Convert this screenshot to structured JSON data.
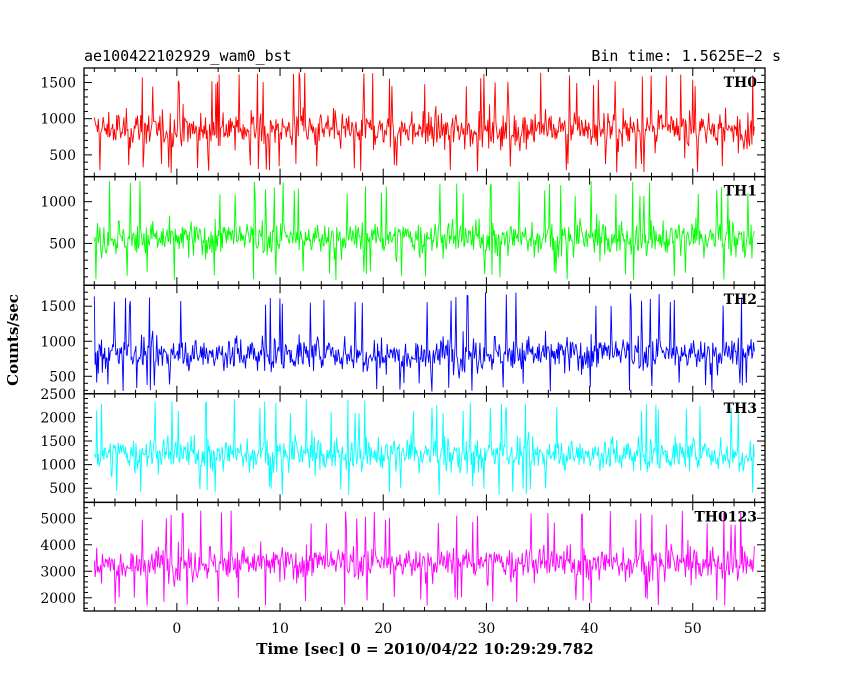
{
  "header": {
    "title": "ae100422102929_wam0_bst",
    "bin_time": "Bin time: 1.5625E−2 s"
  },
  "chart_data": {
    "type": "line",
    "xlabel": "Time [sec] 0 = 2010/04/22 10:29:29.782",
    "ylabel": "Counts/sec",
    "xlim": [
      -9,
      57
    ],
    "data_range": [
      -8,
      56
    ],
    "xticks": [
      0,
      10,
      20,
      30,
      40,
      50
    ],
    "panels": [
      {
        "name": "TH0",
        "color": "#ff0000",
        "ylim": [
          200,
          1700
        ],
        "yticks": [
          500,
          1000,
          1500
        ],
        "mean": 850,
        "low": 250,
        "high": 1650
      },
      {
        "name": "TH1",
        "color": "#00ff00",
        "ylim": [
          0,
          1300
        ],
        "yticks": [
          500,
          1000
        ],
        "mean": 560,
        "low": 60,
        "high": 1250
      },
      {
        "name": "TH2",
        "color": "#0000ff",
        "ylim": [
          250,
          1800
        ],
        "yticks": [
          500,
          1000,
          1500
        ],
        "mean": 820,
        "low": 280,
        "high": 1700
      },
      {
        "name": "TH3",
        "color": "#00ffff",
        "ylim": [
          200,
          2500
        ],
        "yticks": [
          500,
          1000,
          1500,
          2000,
          2500
        ],
        "mean": 1220,
        "low": 350,
        "high": 2400
      },
      {
        "name": "TH0123",
        "color": "#ff00ff",
        "ylim": [
          1500,
          5600
        ],
        "yticks": [
          2000,
          3000,
          4000,
          5000
        ],
        "mean": 3300,
        "low": 1700,
        "high": 5300
      }
    ]
  }
}
